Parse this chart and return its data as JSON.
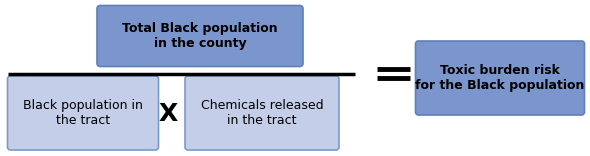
{
  "box1_text": "Black population in\nthe tract",
  "box2_text": "Chemicals released\nin the tract",
  "box3_text": "Total Black population\nin the county",
  "box4_text": "Toxic burden risk\nfor the Black population",
  "multiply_symbol": "X",
  "box_facecolor_light": "#c5cee8",
  "box_edgecolor_light": "#7a9bc8",
  "box_facecolor_dark": "#7b96cc",
  "box_edgecolor_dark": "#6080b8",
  "text_color": "#000000",
  "background_color": "#ffffff",
  "fig_width": 5.9,
  "fig_height": 1.56,
  "dpi": 100
}
